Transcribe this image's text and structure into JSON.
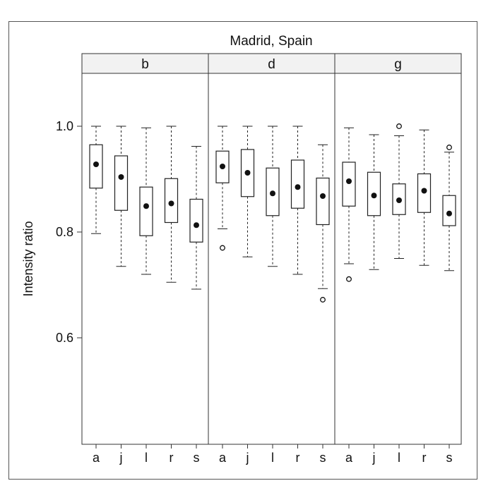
{
  "chart_data": {
    "type": "box",
    "title": "Madrid, Spain",
    "ylabel": "Intensity ratio",
    "xlabel": "",
    "ylim": [
      0.4,
      1.1
    ],
    "yticks": [
      1.0,
      0.8,
      0.6
    ],
    "ytick_labels": [
      "1.0",
      "0.8",
      "0.6"
    ],
    "categories": [
      "a",
      "j",
      "l",
      "r",
      "s"
    ],
    "panels": [
      {
        "label": "b",
        "boxes": [
          {
            "cat": "a",
            "min": 0.797,
            "q1": 0.883,
            "median": 0.928,
            "q3": 0.965,
            "max": 1.0,
            "outliers": []
          },
          {
            "cat": "j",
            "min": 0.735,
            "q1": 0.841,
            "median": 0.904,
            "q3": 0.944,
            "max": 1.0,
            "outliers": []
          },
          {
            "cat": "l",
            "min": 0.72,
            "q1": 0.793,
            "median": 0.849,
            "q3": 0.885,
            "max": 0.997,
            "outliers": []
          },
          {
            "cat": "r",
            "min": 0.705,
            "q1": 0.818,
            "median": 0.854,
            "q3": 0.901,
            "max": 1.0,
            "outliers": []
          },
          {
            "cat": "s",
            "min": 0.692,
            "q1": 0.781,
            "median": 0.813,
            "q3": 0.862,
            "max": 0.962,
            "outliers": []
          }
        ]
      },
      {
        "label": "d",
        "boxes": [
          {
            "cat": "a",
            "min": 0.806,
            "q1": 0.893,
            "median": 0.924,
            "q3": 0.953,
            "max": 1.0,
            "outliers": [
              0.77
            ]
          },
          {
            "cat": "j",
            "min": 0.753,
            "q1": 0.867,
            "median": 0.912,
            "q3": 0.956,
            "max": 1.0,
            "outliers": []
          },
          {
            "cat": "l",
            "min": 0.735,
            "q1": 0.831,
            "median": 0.873,
            "q3": 0.921,
            "max": 1.0,
            "outliers": []
          },
          {
            "cat": "r",
            "min": 0.72,
            "q1": 0.845,
            "median": 0.885,
            "q3": 0.936,
            "max": 1.0,
            "outliers": []
          },
          {
            "cat": "s",
            "min": 0.693,
            "q1": 0.814,
            "median": 0.868,
            "q3": 0.902,
            "max": 0.965,
            "outliers": [
              0.672
            ]
          }
        ]
      },
      {
        "label": "g",
        "boxes": [
          {
            "cat": "a",
            "min": 0.74,
            "q1": 0.849,
            "median": 0.896,
            "q3": 0.932,
            "max": 0.997,
            "outliers": [
              0.711
            ]
          },
          {
            "cat": "j",
            "min": 0.729,
            "q1": 0.831,
            "median": 0.869,
            "q3": 0.913,
            "max": 0.984,
            "outliers": []
          },
          {
            "cat": "l",
            "min": 0.75,
            "q1": 0.833,
            "median": 0.86,
            "q3": 0.891,
            "max": 0.982,
            "outliers": [
              1.0
            ]
          },
          {
            "cat": "r",
            "min": 0.737,
            "q1": 0.837,
            "median": 0.878,
            "q3": 0.91,
            "max": 0.993,
            "outliers": []
          },
          {
            "cat": "s",
            "min": 0.727,
            "q1": 0.812,
            "median": 0.835,
            "q3": 0.869,
            "max": 0.951,
            "outliers": [
              0.96
            ]
          }
        ]
      }
    ]
  }
}
